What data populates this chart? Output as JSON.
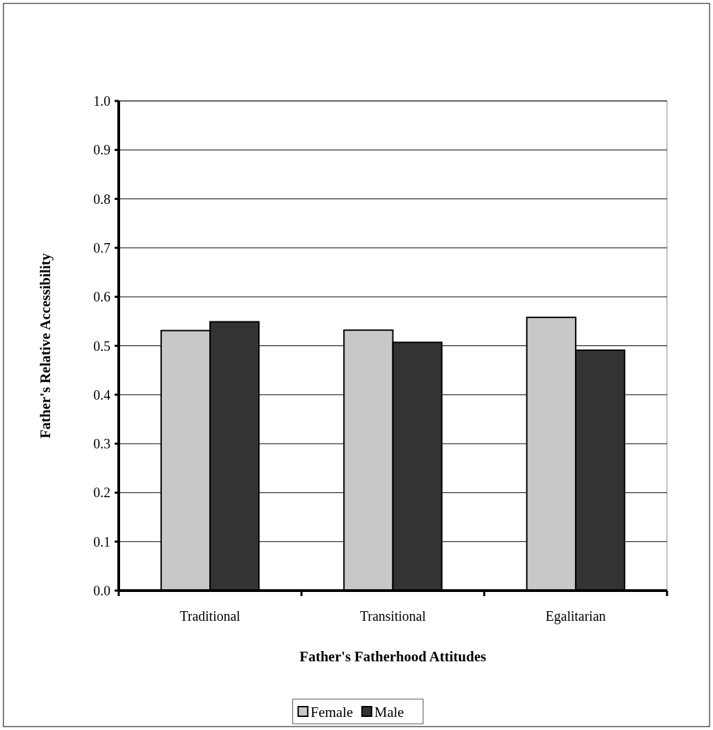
{
  "chart_data": {
    "type": "bar",
    "xlabel": "Father's Fatherhood Attitudes",
    "ylabel": "Father's Relative Accessibility",
    "categories": [
      "Traditional",
      "Transitional",
      "Egalitarian"
    ],
    "series": [
      {
        "name": "Female",
        "color": "#c8c8c8",
        "values": [
          0.531,
          0.532,
          0.558
        ]
      },
      {
        "name": "Male",
        "color": "#333333",
        "values": [
          0.549,
          0.507,
          0.491
        ]
      }
    ],
    "ylim": [
      0,
      1
    ],
    "yticks": [
      {
        "value": 0,
        "label": "0.0"
      },
      0.1,
      0.2,
      0.3,
      0.4,
      0.5,
      0.6,
      0.7,
      0.8,
      0.9,
      {
        "value": 1,
        "label": "1.0"
      }
    ],
    "grid": "y",
    "legend": "bottom"
  }
}
